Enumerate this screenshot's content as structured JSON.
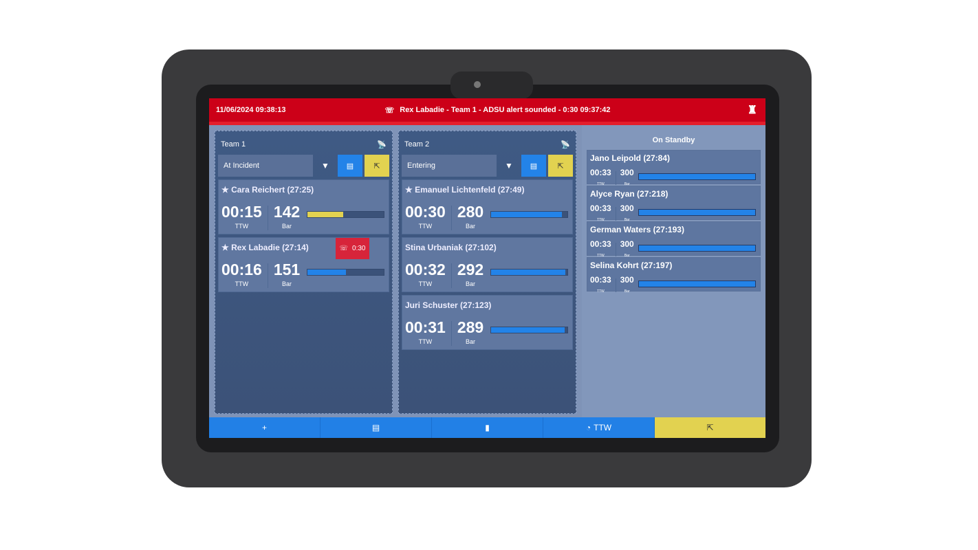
{
  "header": {
    "datetime": "11/06/2024 09:38:13",
    "alert_message": "Rex Labadie - Team 1 - ADSU alert sounded - 0:30 09:37:42",
    "alert_icon": "adsu-alarm-icon",
    "logo_icon": "fire-service-logo"
  },
  "teams": [
    {
      "title": "Team 1",
      "status": "At Incident",
      "members": [
        {
          "name": "★ Cara Reichert (27:25)",
          "ttw": "00:15",
          "bar": "142",
          "ttw_label": "TTW",
          "bar_label": "Bar",
          "fill": 47,
          "color": "#e2d250"
        },
        {
          "name": "★ Rex Labadie (27:14)",
          "ttw": "00:16",
          "bar": "151",
          "ttw_label": "TTW",
          "bar_label": "Bar",
          "fill": 50,
          "color": "#2383e8",
          "alert": "0:30"
        }
      ]
    },
    {
      "title": "Team 2",
      "status": "Entering",
      "members": [
        {
          "name": "★ Emanuel Lichtenfeld (27:49)",
          "ttw": "00:30",
          "bar": "280",
          "ttw_label": "TTW",
          "bar_label": "Bar",
          "fill": 93,
          "color": "#2383e8"
        },
        {
          "name": "Stina Urbaniak (27:102)",
          "ttw": "00:32",
          "bar": "292",
          "ttw_label": "TTW",
          "bar_label": "Bar",
          "fill": 97,
          "color": "#2383e8"
        },
        {
          "name": "Juri Schuster (27:123)",
          "ttw": "00:31",
          "bar": "289",
          "ttw_label": "TTW",
          "bar_label": "Bar",
          "fill": 96,
          "color": "#2383e8"
        }
      ]
    }
  ],
  "standby": {
    "title": "On Standby",
    "members": [
      {
        "name": "Jano Leipold (27:84)",
        "ttw": "00:33",
        "bar": "300",
        "ttw_label": "TTW",
        "bar_label": "Bar",
        "fill": 100
      },
      {
        "name": "Alyce Ryan (27:218)",
        "ttw": "00:33",
        "bar": "300",
        "ttw_label": "TTW",
        "bar_label": "Bar",
        "fill": 100
      },
      {
        "name": "German Waters (27:193)",
        "ttw": "00:33",
        "bar": "300",
        "ttw_label": "TTW",
        "bar_label": "Bar",
        "fill": 100
      },
      {
        "name": "Selina Kohrt (27:197)",
        "ttw": "00:33",
        "bar": "300",
        "ttw_label": "TTW",
        "bar_label": "Bar",
        "fill": 100
      }
    ]
  },
  "footer": {
    "add": "+",
    "ttw_label": "TTW"
  }
}
